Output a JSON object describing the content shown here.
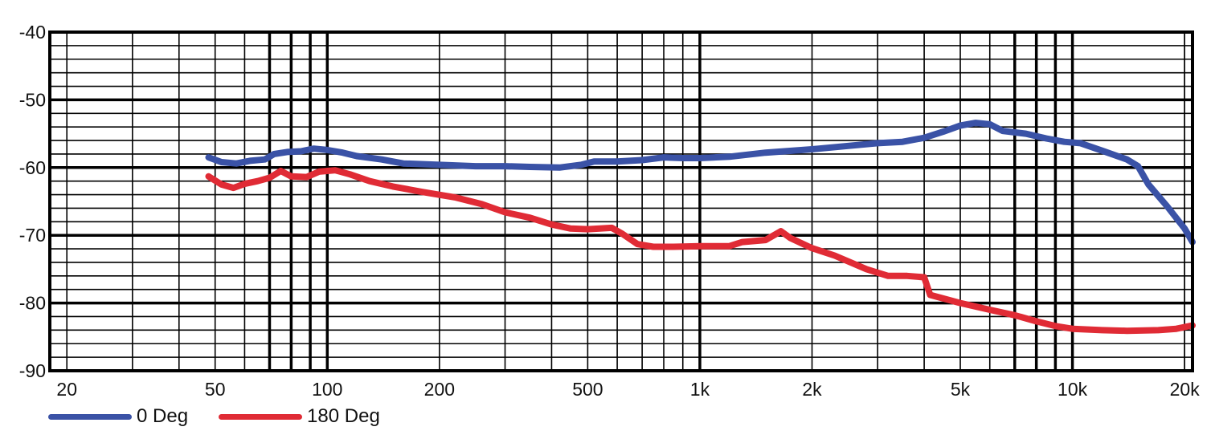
{
  "chart_data": {
    "type": "line",
    "title": "",
    "xlabel": "",
    "ylabel": "",
    "x_scale": "log",
    "xlim": [
      18,
      21000
    ],
    "ylim": [
      -90,
      -40
    ],
    "grid": true,
    "legend_placement": "bottom-left",
    "x_tick_values": [
      20,
      50,
      100,
      200,
      500,
      1000,
      2000,
      5000,
      10000,
      20000
    ],
    "x_tick_labels": [
      "20",
      "50",
      "100",
      "200",
      "500",
      "1k",
      "2k",
      "5k",
      "10k",
      "20k"
    ],
    "y_tick_values": [
      -40,
      -50,
      -60,
      -70,
      -80,
      -90
    ],
    "y_tick_labels": [
      "-40",
      "-50",
      "-60",
      "-70",
      "-80",
      "-90"
    ],
    "series": [
      {
        "name": "0 Deg",
        "color": "#3a52a6",
        "points": [
          [
            48,
            -58.5
          ],
          [
            52,
            -59.2
          ],
          [
            57,
            -59.4
          ],
          [
            62,
            -59.0
          ],
          [
            68,
            -58.8
          ],
          [
            72,
            -58.0
          ],
          [
            78,
            -57.7
          ],
          [
            85,
            -57.6
          ],
          [
            92,
            -57.2
          ],
          [
            100,
            -57.4
          ],
          [
            110,
            -57.8
          ],
          [
            120,
            -58.3
          ],
          [
            140,
            -58.8
          ],
          [
            160,
            -59.4
          ],
          [
            200,
            -59.6
          ],
          [
            250,
            -59.8
          ],
          [
            300,
            -59.8
          ],
          [
            350,
            -59.9
          ],
          [
            420,
            -60.0
          ],
          [
            480,
            -59.6
          ],
          [
            520,
            -59.1
          ],
          [
            600,
            -59.1
          ],
          [
            700,
            -58.9
          ],
          [
            800,
            -58.5
          ],
          [
            900,
            -58.6
          ],
          [
            1000,
            -58.6
          ],
          [
            1200,
            -58.4
          ],
          [
            1500,
            -57.8
          ],
          [
            2000,
            -57.3
          ],
          [
            2500,
            -56.8
          ],
          [
            3000,
            -56.4
          ],
          [
            3500,
            -56.2
          ],
          [
            4000,
            -55.6
          ],
          [
            4500,
            -54.7
          ],
          [
            5000,
            -53.8
          ],
          [
            5500,
            -53.4
          ],
          [
            6000,
            -53.6
          ],
          [
            6500,
            -54.6
          ],
          [
            7500,
            -55.0
          ],
          [
            8500,
            -55.7
          ],
          [
            9500,
            -56.2
          ],
          [
            10500,
            -56.4
          ],
          [
            12000,
            -57.5
          ],
          [
            14000,
            -58.8
          ],
          [
            15000,
            -59.8
          ],
          [
            16000,
            -62.5
          ],
          [
            18000,
            -65.8
          ],
          [
            20000,
            -69.0
          ],
          [
            21000,
            -71.0
          ]
        ]
      },
      {
        "name": "180 Deg",
        "color": "#e02b35",
        "points": [
          [
            48,
            -61.3
          ],
          [
            52,
            -62.5
          ],
          [
            56,
            -63.0
          ],
          [
            60,
            -62.4
          ],
          [
            65,
            -62.0
          ],
          [
            70,
            -61.5
          ],
          [
            75,
            -60.5
          ],
          [
            80,
            -61.3
          ],
          [
            88,
            -61.4
          ],
          [
            95,
            -60.6
          ],
          [
            105,
            -60.4
          ],
          [
            115,
            -61.0
          ],
          [
            130,
            -62.0
          ],
          [
            150,
            -62.8
          ],
          [
            180,
            -63.6
          ],
          [
            220,
            -64.4
          ],
          [
            260,
            -65.4
          ],
          [
            300,
            -66.6
          ],
          [
            350,
            -67.4
          ],
          [
            400,
            -68.4
          ],
          [
            450,
            -69.0
          ],
          [
            500,
            -69.1
          ],
          [
            580,
            -68.9
          ],
          [
            620,
            -69.8
          ],
          [
            680,
            -71.3
          ],
          [
            750,
            -71.7
          ],
          [
            850,
            -71.7
          ],
          [
            1000,
            -71.6
          ],
          [
            1200,
            -71.6
          ],
          [
            1300,
            -71.0
          ],
          [
            1500,
            -70.7
          ],
          [
            1650,
            -69.4
          ],
          [
            1750,
            -70.4
          ],
          [
            2000,
            -71.9
          ],
          [
            2300,
            -73.0
          ],
          [
            2800,
            -75.0
          ],
          [
            3200,
            -76.0
          ],
          [
            3600,
            -76.0
          ],
          [
            4000,
            -76.2
          ],
          [
            4150,
            -78.8
          ],
          [
            5000,
            -80.0
          ],
          [
            6000,
            -81.0
          ],
          [
            7000,
            -81.8
          ],
          [
            8000,
            -82.7
          ],
          [
            9000,
            -83.4
          ],
          [
            10000,
            -83.8
          ],
          [
            12000,
            -84.0
          ],
          [
            14000,
            -84.1
          ],
          [
            17000,
            -84.0
          ],
          [
            19000,
            -83.8
          ],
          [
            21000,
            -83.3
          ]
        ]
      }
    ]
  }
}
